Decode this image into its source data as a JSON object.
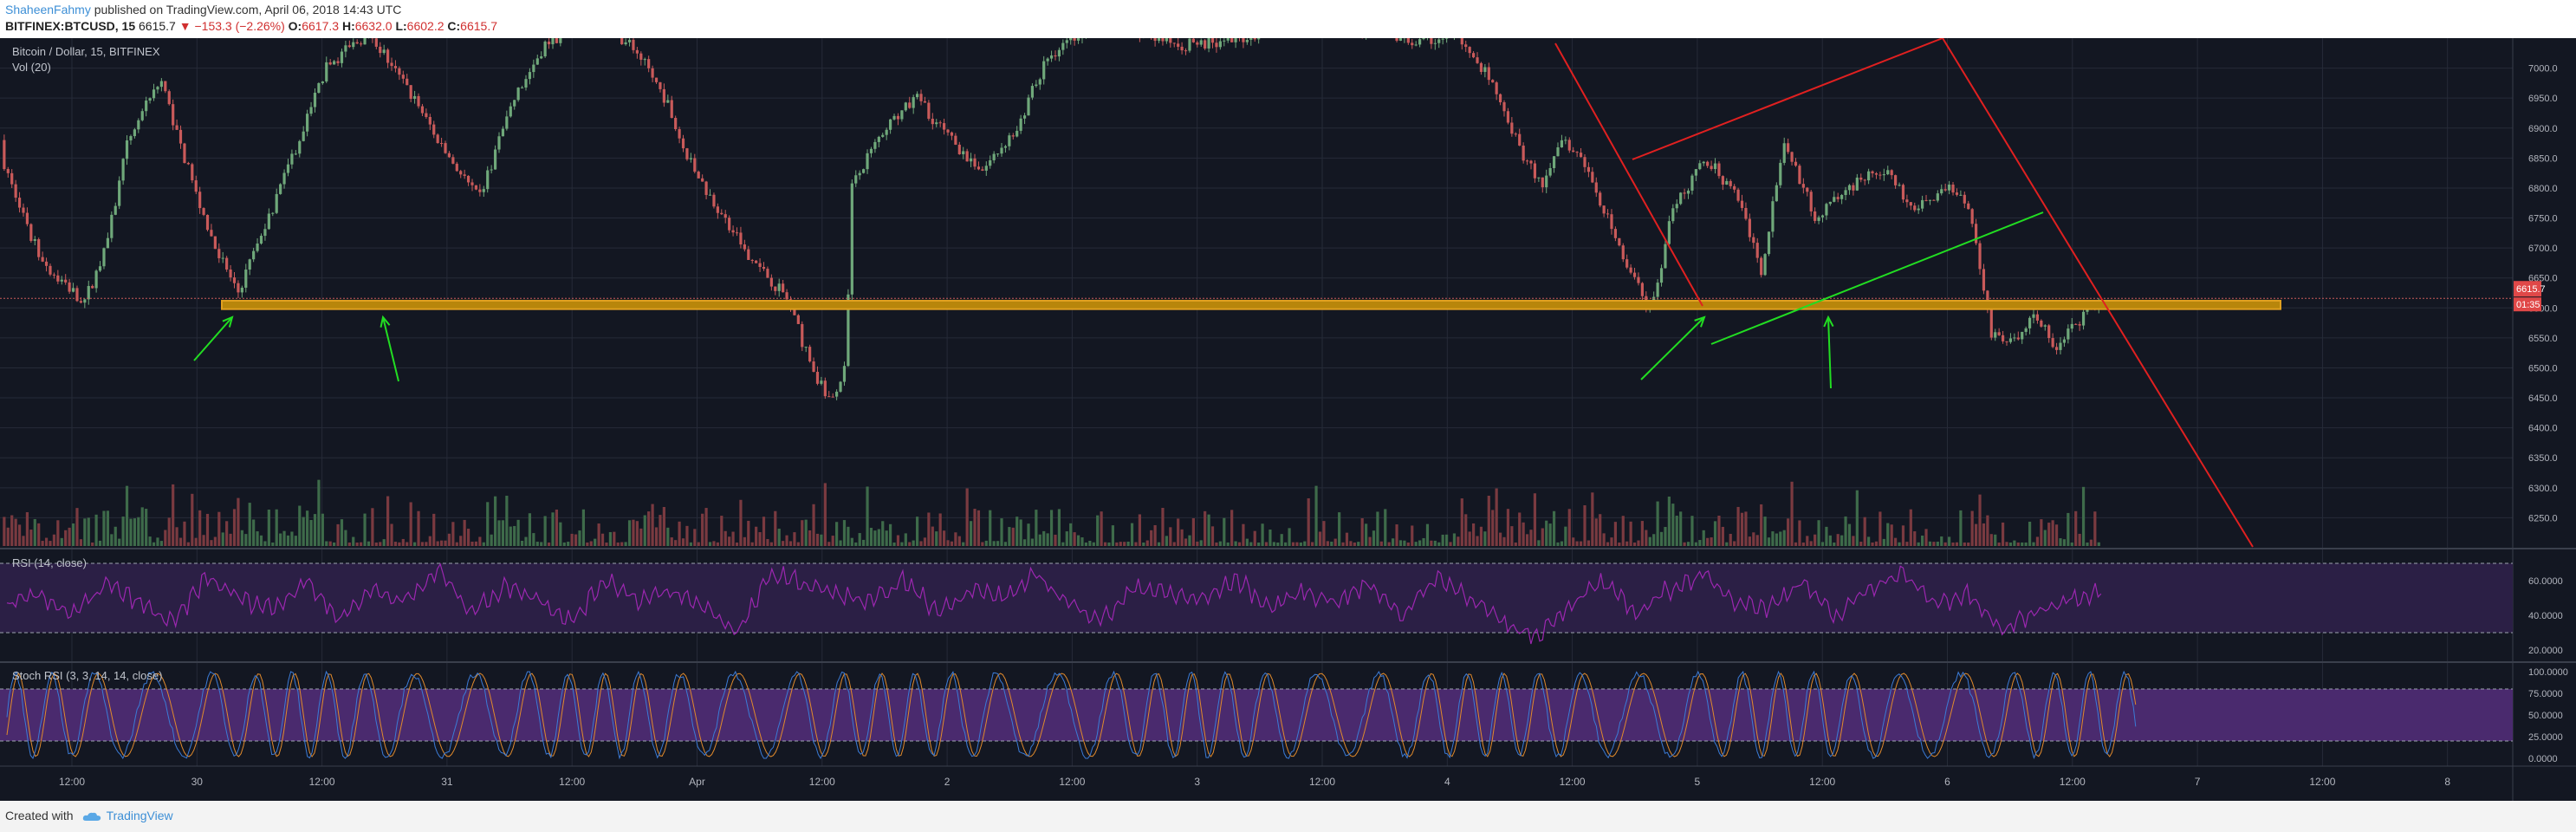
{
  "header": {
    "author": "ShaheenFahmy",
    "published_text": " published on TradingView.com, April 06, 2018 14:43 UTC",
    "symbol": "BITFINEX:BTCUSD, 15",
    "last": "6615.7",
    "change": "−153.3 (−2.26%)",
    "o_label": "O:",
    "o_value": "6617.3",
    "h_label": "H:",
    "h_value": "6632.0",
    "l_label": "L:",
    "l_value": "6602.2",
    "c_label": "C:",
    "c_value": "6615.7"
  },
  "chart_data": {
    "type": "candlestick",
    "title": "Bitcoin / Dollar, 15, BITFINEX",
    "volume_label": "Vol (20)",
    "price_axis_ticks": [
      "7000.0",
      "6950.0",
      "6900.0",
      "6850.0",
      "6800.0",
      "6750.0",
      "6700.0",
      "6650.0",
      "6600.0",
      "6550.0",
      "6500.0",
      "6450.0",
      "6400.0",
      "6350.0",
      "6300.0",
      "6250.0"
    ],
    "price_range": [
      6200,
      7050
    ],
    "last_price_label": "6615.7",
    "countdown_label": "01:35",
    "time_axis_ticks": [
      "12:00",
      "30",
      "12:00",
      "31",
      "12:00",
      "Apr",
      "12:00",
      "2",
      "12:00",
      "3",
      "12:00",
      "4",
      "12:00",
      "5",
      "12:00",
      "6",
      "12:00",
      "7",
      "12:00",
      "8"
    ],
    "support_zone": [
      6598,
      6612
    ],
    "price_path": [
      [
        0,
        6880
      ],
      [
        0.3,
        6720
      ],
      [
        0.5,
        6660
      ],
      [
        0.8,
        6610
      ],
      [
        1.0,
        6700
      ],
      [
        1.2,
        6880
      ],
      [
        1.5,
        6980
      ],
      [
        1.8,
        6800
      ],
      [
        2.0,
        6700
      ],
      [
        2.2,
        6625
      ],
      [
        2.5,
        6760
      ],
      [
        2.8,
        6900
      ],
      [
        3.0,
        7000
      ],
      [
        3.4,
        7060
      ],
      [
        3.8,
        6950
      ],
      [
        4.1,
        6860
      ],
      [
        4.4,
        6780
      ],
      [
        4.7,
        6940
      ],
      [
        5.0,
        7040
      ],
      [
        5.4,
        7080
      ],
      [
        5.8,
        7040
      ],
      [
        6.1,
        6950
      ],
      [
        6.3,
        6850
      ],
      [
        6.6,
        6760
      ],
      [
        6.9,
        6680
      ],
      [
        7.2,
        6620
      ],
      [
        7.4,
        6520
      ],
      [
        7.6,
        6440
      ],
      [
        7.75,
        6500
      ],
      [
        7.8,
        6800
      ],
      [
        8.1,
        6900
      ],
      [
        8.4,
        6950
      ],
      [
        8.7,
        6880
      ],
      [
        9.0,
        6830
      ],
      [
        9.3,
        6900
      ],
      [
        9.6,
        7020
      ],
      [
        10.0,
        7080
      ],
      [
        10.4,
        7060
      ],
      [
        10.8,
        7040
      ],
      [
        11.2,
        7040
      ],
      [
        11.5,
        7060
      ],
      [
        11.8,
        7100
      ],
      [
        12.2,
        7080
      ],
      [
        12.6,
        7060
      ],
      [
        13.0,
        7040
      ],
      [
        13.3,
        7060
      ],
      [
        13.6,
        6990
      ],
      [
        13.8,
        6900
      ],
      [
        14.1,
        6800
      ],
      [
        14.3,
        6880
      ],
      [
        14.5,
        6840
      ],
      [
        14.8,
        6700
      ],
      [
        15.1,
        6590
      ],
      [
        15.3,
        6770
      ],
      [
        15.6,
        6850
      ],
      [
        15.9,
        6780
      ],
      [
        16.1,
        6660
      ],
      [
        16.3,
        6880
      ],
      [
        16.6,
        6750
      ],
      [
        16.9,
        6800
      ],
      [
        17.2,
        6830
      ],
      [
        17.5,
        6770
      ],
      [
        17.8,
        6800
      ],
      [
        18.0,
        6770
      ],
      [
        18.2,
        6560
      ],
      [
        18.4,
        6540
      ],
      [
        18.6,
        6590
      ],
      [
        18.8,
        6530
      ],
      [
        19.0,
        6580
      ],
      [
        19.2,
        6615
      ]
    ],
    "rsi": {
      "label": "RSI (14, close)",
      "ticks": [
        "60.0000",
        "40.0000",
        "20.0000"
      ],
      "range": [
        15,
        75
      ],
      "band": [
        30,
        70
      ],
      "values": [
        45,
        52,
        40,
        58,
        47,
        35,
        62,
        50,
        44,
        60,
        38,
        55,
        48,
        66,
        42,
        57,
        50,
        36,
        61,
        49,
        53,
        45,
        30,
        64,
        58,
        52,
        47,
        60,
        42,
        55,
        50,
        63,
        46,
        38,
        57,
        52,
        49,
        61,
        44,
        54,
        48,
        58,
        40,
        62,
        51,
        35,
        28,
        46,
        59,
        41,
        55,
        63,
        49,
        44,
        60,
        38,
        56,
        64,
        47,
        52,
        31,
        42,
        50,
        54
      ]
    },
    "stoch_rsi": {
      "label": "Stoch RSI (3, 3, 14, 14, close)",
      "ticks": [
        "100.0000",
        "75.0000",
        "50.0000",
        "25.0000",
        "0.0000"
      ],
      "range": [
        -5,
        105
      ],
      "band": [
        20,
        80
      ]
    }
  },
  "footer": {
    "created_with": "Created with",
    "brand": "TradingView"
  }
}
